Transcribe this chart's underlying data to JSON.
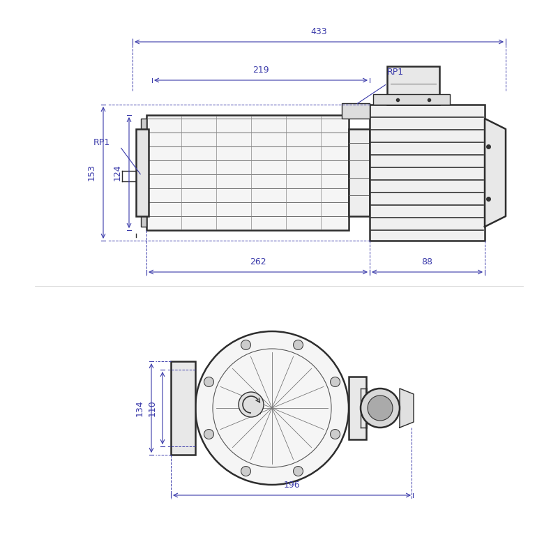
{
  "bg_color": "#ffffff",
  "line_color": "#2d2d2d",
  "dim_color": "#3a3aaa",
  "line_width": 1.0,
  "thick_line": 1.8,
  "dim_text_size": 9,
  "label_text_size": 9,
  "dim_433": "433",
  "dim_219": "219",
  "dim_153": "153",
  "dim_124": "124",
  "dim_262": "262",
  "dim_88": "88",
  "dim_196": "196",
  "dim_134": "134",
  "dim_110": "110",
  "label_rp1_left": "RP1",
  "label_rp1_right": "RP1"
}
